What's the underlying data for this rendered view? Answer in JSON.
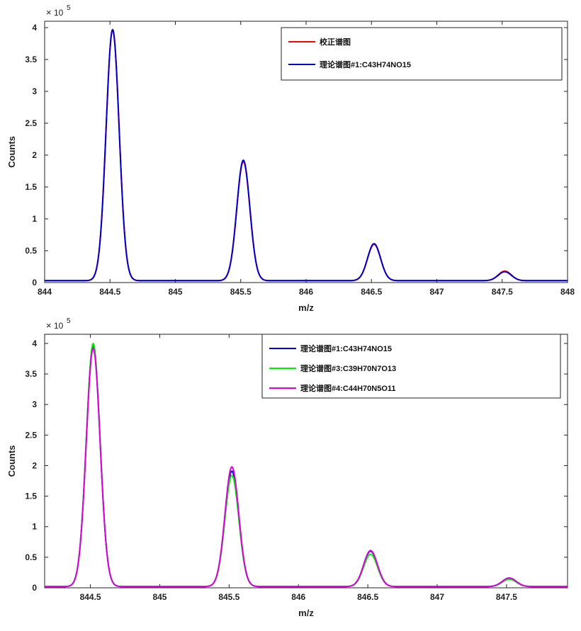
{
  "chart_data": [
    {
      "type": "line",
      "xlabel": "m/z",
      "ylabel": "Counts",
      "exponent_label": {
        "base": "10",
        "power": "5"
      },
      "xlim": [
        844,
        848
      ],
      "ylim": [
        0,
        4.1
      ],
      "xticks": [
        844,
        844.5,
        845,
        845.5,
        846,
        846.5,
        847,
        847.5,
        848
      ],
      "xtick_labels": [
        "844",
        "844.5",
        "845",
        "845.5",
        "846",
        "846.5",
        "847",
        "847.5",
        "848"
      ],
      "yticks": [
        0,
        0.5,
        1,
        1.5,
        2,
        2.5,
        3,
        3.5,
        4
      ],
      "ytick_labels": [
        "0",
        "0.5",
        "1",
        "1.5",
        "2",
        "2.5",
        "3",
        "3.5",
        "4"
      ],
      "grid": false,
      "legend_position": "top-right",
      "peak_mz": [
        844.52,
        845.52,
        846.52,
        847.52
      ],
      "peak_width": 0.05,
      "baseline": 0.03,
      "series": [
        {
          "name": "校正谱图",
          "color": "#ff0000",
          "peaks": [
            3.93,
            1.87,
            0.57,
            0.15
          ]
        },
        {
          "name": "理论谱图#1:C43H74NO15",
          "color": "#0000cc",
          "peaks": [
            3.94,
            1.89,
            0.58,
            0.14
          ]
        }
      ]
    },
    {
      "type": "line",
      "xlabel": "m/z",
      "ylabel": "Counts",
      "exponent_label": {
        "base": "10",
        "power": "5"
      },
      "xlim": [
        844.17,
        847.94
      ],
      "ylim": [
        0,
        4.15
      ],
      "xticks": [
        844.5,
        845,
        845.5,
        846,
        846.5,
        847,
        847.5
      ],
      "xtick_labels": [
        "844.5",
        "845",
        "845.5",
        "846",
        "846.5",
        "847",
        "847.5"
      ],
      "yticks": [
        0,
        0.5,
        1,
        1.5,
        2,
        2.5,
        3,
        3.5,
        4
      ],
      "ytick_labels": [
        "0",
        "0.5",
        "1",
        "1.5",
        "2",
        "2.5",
        "3",
        "3.5",
        "4"
      ],
      "grid": false,
      "legend_position": "top-right",
      "peak_mz": [
        844.52,
        845.52,
        846.52,
        847.52
      ],
      "peak_width": 0.05,
      "baseline": 0.02,
      "series": [
        {
          "name": "理论谱图#1:C43H74NO15",
          "color": "#0000cc",
          "peaks": [
            3.94,
            1.89,
            0.58,
            0.14
          ]
        },
        {
          "name": "理论谱图#3:C39H70N7O13",
          "color": "#00ee00",
          "peaks": [
            3.98,
            1.82,
            0.53,
            0.12
          ]
        },
        {
          "name": "理论谱图#4:C44H70N5O11",
          "color": "#dd00dd",
          "peaks": [
            3.9,
            1.96,
            0.59,
            0.14
          ]
        }
      ]
    }
  ]
}
